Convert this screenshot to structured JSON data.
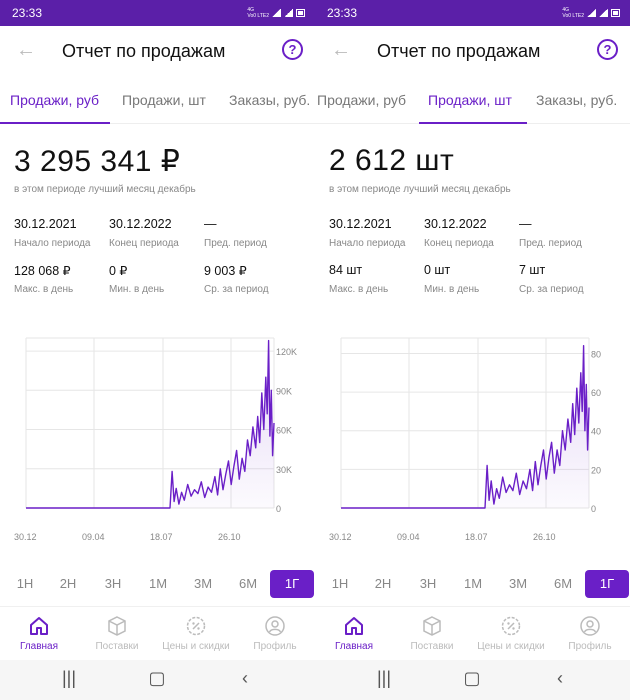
{
  "colors": {
    "accent": "#6a1fc7",
    "statusbar": "#5b1fa8",
    "muted": "#888888",
    "grid": "#e6e6e6"
  },
  "screens": [
    {
      "status": {
        "time": "23:33",
        "net": "4G",
        "lte": "Vo0 LTE2"
      },
      "header": {
        "title": "Отчет по продажам",
        "help": "?"
      },
      "tabs": [
        {
          "label": "Продажи, руб",
          "active": true
        },
        {
          "label": "Продажи, шт",
          "active": false
        },
        {
          "label": "Заказы, руб.",
          "active": false
        }
      ],
      "summary": {
        "value": "3 295 341 ₽",
        "subtitle": "в этом периоде лучший месяц декабрь"
      },
      "stats": [
        {
          "value": "30.12.2021",
          "label": "Начало периода"
        },
        {
          "value": "30.12.2022",
          "label": "Конец периода"
        },
        {
          "value": "—",
          "label": "Пред. период"
        },
        {
          "value": "128 068 ₽",
          "label": "Макс. в день"
        },
        {
          "value": "0 ₽",
          "label": "Мин. в день"
        },
        {
          "value": "9 003 ₽",
          "label": "Ср. за период"
        }
      ],
      "periods": [
        "1Н",
        "2Н",
        "3Н",
        "1М",
        "3М",
        "6М",
        "1Г"
      ],
      "active_period": "1Г",
      "nav": [
        {
          "label": "Главная",
          "icon": "home-icon",
          "active": true
        },
        {
          "label": "Поставки",
          "icon": "box-icon",
          "active": false
        },
        {
          "label": "Цены и скидки",
          "icon": "discount-icon",
          "active": false
        },
        {
          "label": "Профиль",
          "icon": "profile-icon",
          "active": false
        }
      ]
    },
    {
      "status": {
        "time": "23:33",
        "net": "4G",
        "lte": "Vo0 LTE2"
      },
      "header": {
        "title": "Отчет по продажам",
        "help": "?"
      },
      "tabs": [
        {
          "label": "Продажи, руб",
          "active": false
        },
        {
          "label": "Продажи, шт",
          "active": true
        },
        {
          "label": "Заказы, руб.",
          "active": false
        }
      ],
      "summary": {
        "value": "2 612 шт",
        "subtitle": "в этом периоде лучший месяц декабрь"
      },
      "stats": [
        {
          "value": "30.12.2021",
          "label": "Начало периода"
        },
        {
          "value": "30.12.2022",
          "label": "Конец периода"
        },
        {
          "value": "—",
          "label": "Пред. период"
        },
        {
          "value": "84 шт",
          "label": "Макс. в день"
        },
        {
          "value": "0 шт",
          "label": "Мин. в день"
        },
        {
          "value": "7 шт",
          "label": "Ср. за период"
        }
      ],
      "periods": [
        "1Н",
        "2Н",
        "3Н",
        "1М",
        "3М",
        "6М",
        "1Г"
      ],
      "active_period": "1Г",
      "nav": [
        {
          "label": "Главная",
          "icon": "home-icon",
          "active": true
        },
        {
          "label": "Поставки",
          "icon": "box-icon",
          "active": false
        },
        {
          "label": "Цены и скидки",
          "icon": "discount-icon",
          "active": false
        },
        {
          "label": "Профиль",
          "icon": "profile-icon",
          "active": false
        }
      ]
    }
  ],
  "chart_data": [
    {
      "type": "area",
      "x_ticks": [
        "30.12",
        "09.04",
        "18.07",
        "26.10"
      ],
      "y_ticks": [
        "0",
        "30K",
        "60K",
        "90K",
        "120K"
      ],
      "ylim": [
        0,
        130000
      ],
      "x": [
        "2021-12-30",
        "2022-07-30",
        "2022-08-02",
        "2022-08-05",
        "2022-08-08",
        "2022-08-12",
        "2022-08-16",
        "2022-08-20",
        "2022-08-25",
        "2022-08-30",
        "2022-09-04",
        "2022-09-09",
        "2022-09-14",
        "2022-09-19",
        "2022-09-24",
        "2022-09-29",
        "2022-10-04",
        "2022-10-08",
        "2022-10-12",
        "2022-10-16",
        "2022-10-20",
        "2022-10-24",
        "2022-10-28",
        "2022-11-01",
        "2022-11-05",
        "2022-11-09",
        "2022-11-13",
        "2022-11-17",
        "2022-11-21",
        "2022-11-25",
        "2022-11-29",
        "2022-12-03",
        "2022-12-06",
        "2022-12-09",
        "2022-12-12",
        "2022-12-15",
        "2022-12-18",
        "2022-12-20",
        "2022-12-22",
        "2022-12-24",
        "2022-12-26",
        "2022-12-28",
        "2022-12-30"
      ],
      "values": [
        0,
        0,
        28000,
        5000,
        15000,
        3000,
        12000,
        6000,
        18000,
        9000,
        14000,
        11000,
        20000,
        8000,
        16000,
        12000,
        24000,
        10000,
        30000,
        14000,
        26000,
        36000,
        18000,
        32000,
        44000,
        22000,
        38000,
        28000,
        52000,
        40000,
        62000,
        46000,
        70000,
        50000,
        88000,
        60000,
        100000,
        72000,
        128000,
        55000,
        90000,
        40000,
        65000
      ]
    },
    {
      "type": "area",
      "x_ticks": [
        "30.12",
        "09.04",
        "18.07",
        "26.10"
      ],
      "y_ticks": [
        "0",
        "20",
        "40",
        "60",
        "80"
      ],
      "ylim": [
        0,
        88
      ],
      "x": [
        "2021-12-30",
        "2022-07-30",
        "2022-08-02",
        "2022-08-05",
        "2022-08-08",
        "2022-08-12",
        "2022-08-16",
        "2022-08-20",
        "2022-08-25",
        "2022-08-30",
        "2022-09-04",
        "2022-09-09",
        "2022-09-14",
        "2022-09-19",
        "2022-09-24",
        "2022-09-29",
        "2022-10-04",
        "2022-10-08",
        "2022-10-12",
        "2022-10-16",
        "2022-10-20",
        "2022-10-24",
        "2022-10-28",
        "2022-11-01",
        "2022-11-05",
        "2022-11-09",
        "2022-11-13",
        "2022-11-17",
        "2022-11-21",
        "2022-11-25",
        "2022-11-29",
        "2022-12-03",
        "2022-12-06",
        "2022-12-09",
        "2022-12-12",
        "2022-12-15",
        "2022-12-18",
        "2022-12-20",
        "2022-12-22",
        "2022-12-24",
        "2022-12-26",
        "2022-12-28",
        "2022-12-30"
      ],
      "values": [
        0,
        0,
        22,
        4,
        14,
        2,
        10,
        5,
        16,
        8,
        12,
        9,
        18,
        7,
        14,
        10,
        20,
        9,
        24,
        12,
        22,
        30,
        15,
        26,
        34,
        18,
        30,
        22,
        40,
        30,
        46,
        34,
        54,
        38,
        62,
        44,
        70,
        50,
        84,
        40,
        64,
        30,
        52
      ]
    }
  ]
}
